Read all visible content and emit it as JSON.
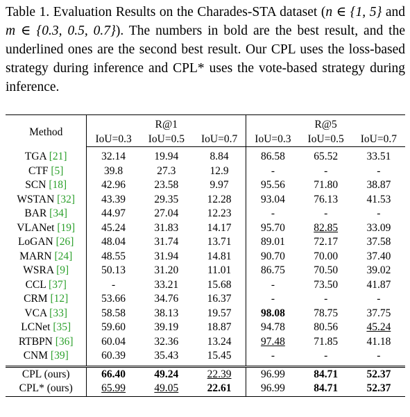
{
  "caption": {
    "label": "Table 1.",
    "text_before_n": " Evaluation Results on the Charades-STA dataset (",
    "n_expr": "n ∈ {1, 5}",
    "and": " and ",
    "m_expr": "m ∈ {0.3, 0.5, 0.7}",
    "text_after": "). The numbers in bold are the best result, and the underlined ones are the second best result. Our CPL uses the loss-based strategy during inference and CPL* uses the vote-based strategy during inference."
  },
  "table": {
    "method_header": "Method",
    "group_headers": [
      "R@1",
      "R@5"
    ],
    "iou_headers": [
      "IoU=0.3",
      "IoU=0.5",
      "IoU=0.7",
      "IoU=0.3",
      "IoU=0.5",
      "IoU=0.7"
    ],
    "rows": [
      {
        "name": "TGA",
        "cite": "[21]",
        "values": [
          "32.14",
          "19.94",
          "8.84",
          "86.58",
          "65.52",
          "33.51"
        ]
      },
      {
        "name": "CTF",
        "cite": "[5]",
        "values": [
          "39.8",
          "27.3",
          "12.9",
          "-",
          "-",
          "-"
        ]
      },
      {
        "name": "SCN",
        "cite": "[18]",
        "values": [
          "42.96",
          "23.58",
          "9.97",
          "95.56",
          "71.80",
          "38.87"
        ]
      },
      {
        "name": "WSTAN",
        "cite": "[32]",
        "values": [
          "43.39",
          "29.35",
          "12.28",
          "93.04",
          "76.13",
          "41.53"
        ]
      },
      {
        "name": "BAR",
        "cite": "[34]",
        "values": [
          "44.97",
          "27.04",
          "12.23",
          "-",
          "-",
          "-"
        ]
      },
      {
        "name": "VLANet",
        "cite": "[19]",
        "values": [
          "45.24",
          "31.83",
          "14.17",
          "95.70",
          "82.85",
          "33.09"
        ]
      },
      {
        "name": "LoGAN",
        "cite": "[26]",
        "values": [
          "48.04",
          "31.74",
          "13.71",
          "89.01",
          "72.17",
          "37.58"
        ]
      },
      {
        "name": "MARN",
        "cite": "[24]",
        "values": [
          "48.55",
          "31.94",
          "14.81",
          "90.70",
          "70.00",
          "37.40"
        ]
      },
      {
        "name": "WSRA",
        "cite": "[9]",
        "values": [
          "50.13",
          "31.20",
          "11.01",
          "86.75",
          "70.50",
          "39.02"
        ]
      },
      {
        "name": "CCL",
        "cite": "[37]",
        "values": [
          "-",
          "33.21",
          "15.68",
          "-",
          "73.50",
          "41.87"
        ]
      },
      {
        "name": "CRM",
        "cite": "[12]",
        "values": [
          "53.66",
          "34.76",
          "16.37",
          "-",
          "-",
          "-"
        ]
      },
      {
        "name": "VCA",
        "cite": "[33]",
        "values": [
          "58.58",
          "38.13",
          "19.57",
          "98.08",
          "78.75",
          "37.75"
        ]
      },
      {
        "name": "LCNet",
        "cite": "[35]",
        "values": [
          "59.60",
          "39.19",
          "18.87",
          "94.78",
          "80.56",
          "45.24"
        ]
      },
      {
        "name": "RTBPN",
        "cite": "[36]",
        "values": [
          "60.04",
          "32.36",
          "13.24",
          "97.48",
          "71.85",
          "41.18"
        ]
      },
      {
        "name": "CNM",
        "cite": "[39]",
        "values": [
          "60.39",
          "35.43",
          "15.45",
          "-",
          "-",
          "-"
        ]
      }
    ],
    "ours": [
      {
        "name": "CPL (ours)",
        "values": [
          "66.40",
          "49.24",
          "22.39",
          "96.99",
          "84.71",
          "52.37"
        ]
      },
      {
        "name": "CPL* (ours)",
        "values": [
          "65.99",
          "49.05",
          "22.61",
          "96.99",
          "84.71",
          "52.37"
        ]
      }
    ],
    "styles": {
      "VLANet": [
        "",
        "",
        "",
        "",
        "ul",
        ""
      ],
      "VCA": [
        "",
        "",
        "",
        "bold",
        "",
        ""
      ],
      "LCNet": [
        "",
        "",
        "",
        "",
        "",
        "ul"
      ],
      "RTBPN": [
        "",
        "",
        "",
        "ul",
        "",
        ""
      ],
      "CPL (ours)": [
        "bold",
        "bold",
        "ul",
        "",
        "bold",
        "bold"
      ],
      "CPL* (ours)": [
        "ul",
        "ul",
        "bold",
        "",
        "bold",
        "bold"
      ]
    },
    "cite_color": "#2ca02c"
  }
}
